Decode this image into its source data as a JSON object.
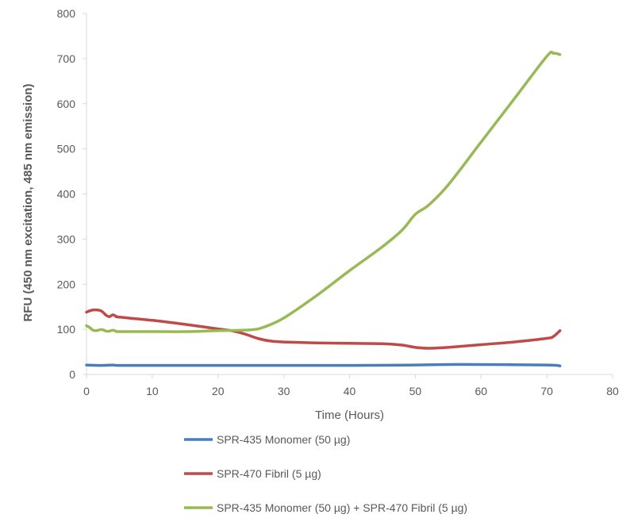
{
  "chart_data": {
    "type": "line",
    "xlabel": "Time (Hours)",
    "ylabel": "RFU (450 nm excitation, 485 nm emission)",
    "xlim": [
      0,
      80
    ],
    "ylim": [
      0,
      800
    ],
    "xticks": [
      0,
      10,
      20,
      30,
      40,
      50,
      60,
      70,
      80
    ],
    "yticks": [
      0,
      100,
      200,
      300,
      400,
      500,
      600,
      700,
      800
    ],
    "grid": false,
    "legend_position": "bottom",
    "series": [
      {
        "name": "SPR-435 Monomer (50 µg)",
        "color": "#4a7ebb",
        "points": [
          [
            0,
            21
          ],
          [
            2,
            20
          ],
          [
            4,
            21
          ],
          [
            5,
            20
          ],
          [
            10,
            20
          ],
          [
            20,
            20
          ],
          [
            30,
            20
          ],
          [
            40,
            20
          ],
          [
            50,
            21
          ],
          [
            55,
            22
          ],
          [
            60,
            22
          ],
          [
            70,
            21
          ],
          [
            72,
            19
          ]
        ]
      },
      {
        "name": "SPR-470 Fibril (5 µg)",
        "color": "#be4b48",
        "points": [
          [
            0,
            138
          ],
          [
            0.5,
            141
          ],
          [
            1,
            143
          ],
          [
            2,
            142
          ],
          [
            2.5,
            138
          ],
          [
            3,
            131
          ],
          [
            3.5,
            128
          ],
          [
            4,
            132
          ],
          [
            4.5,
            129
          ],
          [
            5,
            127
          ],
          [
            10,
            120
          ],
          [
            15,
            111
          ],
          [
            20,
            101
          ],
          [
            22,
            97
          ],
          [
            24,
            90
          ],
          [
            26,
            80
          ],
          [
            28,
            74
          ],
          [
            30,
            72
          ],
          [
            35,
            70
          ],
          [
            40,
            69
          ],
          [
            45,
            68
          ],
          [
            48,
            65
          ],
          [
            50,
            60
          ],
          [
            52,
            58
          ],
          [
            55,
            60
          ],
          [
            60,
            66
          ],
          [
            65,
            72
          ],
          [
            70,
            80
          ],
          [
            71,
            84
          ],
          [
            72,
            97
          ]
        ]
      },
      {
        "name": "SPR-435 Monomer (50 µg) + SPR-470 Fibril (5 µg)",
        "color": "#98b954",
        "points": [
          [
            0,
            108
          ],
          [
            0.5,
            104
          ],
          [
            1,
            98
          ],
          [
            1.5,
            97
          ],
          [
            2,
            99
          ],
          [
            2.5,
            99
          ],
          [
            3,
            96
          ],
          [
            3.5,
            96
          ],
          [
            4,
            98
          ],
          [
            4.5,
            96
          ],
          [
            5,
            95
          ],
          [
            10,
            95
          ],
          [
            15,
            95
          ],
          [
            20,
            97
          ],
          [
            25,
            99
          ],
          [
            27,
            105
          ],
          [
            30,
            125
          ],
          [
            35,
            175
          ],
          [
            40,
            230
          ],
          [
            45,
            283
          ],
          [
            48,
            320
          ],
          [
            50,
            355
          ],
          [
            52,
            375
          ],
          [
            55,
            420
          ],
          [
            60,
            515
          ],
          [
            65,
            610
          ],
          [
            70,
            705
          ],
          [
            71,
            712
          ],
          [
            72,
            709
          ]
        ]
      }
    ]
  }
}
